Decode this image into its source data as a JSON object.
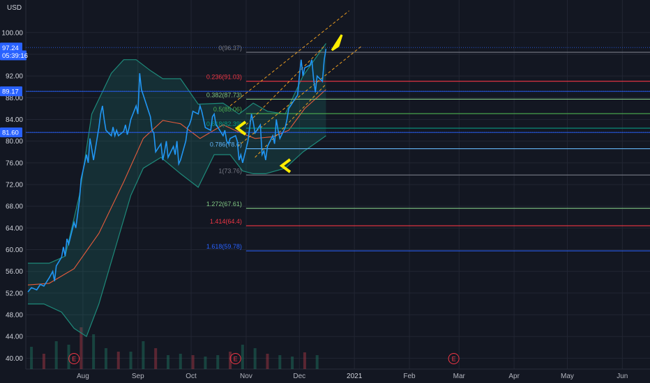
{
  "chart_data": {
    "type": "line",
    "currency": "USD",
    "ylim": [
      38.0,
      106.0
    ],
    "yticks": [
      "100.00",
      "96.00",
      "92.00",
      "88.00",
      "84.00",
      "80.00",
      "76.00",
      "72.00",
      "68.00",
      "64.00",
      "60.00",
      "56.00",
      "52.00",
      "48.00",
      "44.00",
      "40.00"
    ],
    "xticks": [
      "Aug",
      "Sep",
      "Oct",
      "Nov",
      "Dec",
      "2021",
      "Feb",
      "Mar",
      "Apr",
      "May",
      "Jun"
    ],
    "price_tags": [
      {
        "label": "97.24",
        "value": 97.24,
        "color": "#2962ff"
      },
      {
        "label": "05:39:16",
        "value": 95.8,
        "color": "#2962ff"
      },
      {
        "label": "89.17",
        "value": 89.17,
        "color": "#2962ff"
      },
      {
        "label": "81.60",
        "value": 81.6,
        "color": "#2962ff"
      }
    ],
    "horizontal_levels": [
      97.24,
      89.17,
      81.6
    ],
    "fib_levels": [
      {
        "label": "0(96.37)",
        "value": 96.37,
        "color": "#787b86"
      },
      {
        "label": "0.236(91.03)",
        "value": 91.03,
        "color": "#f23645"
      },
      {
        "label": "0.382(87.73)",
        "value": 87.73,
        "color": "#81c784"
      },
      {
        "label": "0.5(85.06)",
        "value": 85.06,
        "color": "#4caf50"
      },
      {
        "label": "0.618(82.39)",
        "value": 82.39,
        "color": "#089981"
      },
      {
        "label": "0.786(78.6)",
        "value": 78.6,
        "color": "#64b5f6"
      },
      {
        "label": "1(73.76)",
        "value": 73.76,
        "color": "#787b86"
      },
      {
        "label": "1.272(67.61)",
        "value": 67.61,
        "color": "#81c784"
      },
      {
        "label": "1.414(64.4)",
        "value": 64.4,
        "color": "#f23645"
      },
      {
        "label": "1.618(59.78)",
        "value": 59.78,
        "color": "#2962ff"
      }
    ],
    "events": [
      {
        "label": "E",
        "date": "2020-07-27"
      },
      {
        "label": "E",
        "date": "2020-10-26"
      },
      {
        "label": "E",
        "date": "2021-02-26"
      }
    ],
    "series": [
      {
        "type": "line",
        "color": "#2196f3",
        "points": [
          [
            "2020-07-01",
            52.2
          ],
          [
            "2020-07-03",
            53.0
          ],
          [
            "2020-07-06",
            52.6
          ],
          [
            "2020-07-08",
            53.6
          ],
          [
            "2020-07-10",
            53.3
          ],
          [
            "2020-07-13",
            54.8
          ],
          [
            "2020-07-15",
            56.0
          ],
          [
            "2020-07-16",
            54.2
          ],
          [
            "2020-07-17",
            57.0
          ],
          [
            "2020-07-20",
            58.6
          ],
          [
            "2020-07-21",
            60.5
          ],
          [
            "2020-07-22",
            58.8
          ],
          [
            "2020-07-23",
            62.0
          ],
          [
            "2020-07-24",
            61.0
          ],
          [
            "2020-07-27",
            65.0
          ],
          [
            "2020-07-28",
            64.0
          ],
          [
            "2020-07-29",
            66.4
          ],
          [
            "2020-07-30",
            69.0
          ],
          [
            "2020-07-31",
            73.0
          ],
          [
            "2020-08-03",
            77.5
          ],
          [
            "2020-08-04",
            76.0
          ],
          [
            "2020-08-05",
            80.5
          ],
          [
            "2020-08-06",
            78.5
          ],
          [
            "2020-08-07",
            76.5
          ],
          [
            "2020-08-10",
            82.5
          ],
          [
            "2020-08-11",
            85.0
          ],
          [
            "2020-08-12",
            86.5
          ],
          [
            "2020-08-13",
            84.0
          ],
          [
            "2020-08-14",
            82.0
          ],
          [
            "2020-08-17",
            81.0
          ],
          [
            "2020-08-18",
            82.6
          ],
          [
            "2020-08-19",
            81.0
          ],
          [
            "2020-08-20",
            82.0
          ],
          [
            "2020-08-21",
            81.0
          ],
          [
            "2020-08-24",
            81.8
          ],
          [
            "2020-08-25",
            83.0
          ],
          [
            "2020-08-26",
            81.2
          ],
          [
            "2020-08-27",
            82.4
          ],
          [
            "2020-08-28",
            84.0
          ],
          [
            "2020-08-31",
            86.5
          ],
          [
            "2020-09-01",
            85.0
          ],
          [
            "2020-09-02",
            92.5
          ],
          [
            "2020-09-03",
            89.5
          ],
          [
            "2020-09-04",
            88.5
          ],
          [
            "2020-09-08",
            84.5
          ],
          [
            "2020-09-09",
            82.0
          ],
          [
            "2020-09-10",
            81.5
          ],
          [
            "2020-09-11",
            78.0
          ],
          [
            "2020-09-14",
            79.5
          ],
          [
            "2020-09-15",
            76.5
          ],
          [
            "2020-09-16",
            78.0
          ],
          [
            "2020-09-17",
            80.0
          ],
          [
            "2020-09-18",
            77.0
          ],
          [
            "2020-09-21",
            79.0
          ],
          [
            "2020-09-22",
            77.5
          ],
          [
            "2020-09-23",
            80.0
          ],
          [
            "2020-09-24",
            75.8
          ],
          [
            "2020-09-25",
            76.5
          ],
          [
            "2020-09-28",
            80.0
          ],
          [
            "2020-09-29",
            82.5
          ],
          [
            "2020-09-30",
            83.0
          ],
          [
            "2020-10-01",
            84.0
          ],
          [
            "2020-10-02",
            85.5
          ],
          [
            "2020-10-05",
            85.0
          ],
          [
            "2020-10-06",
            86.5
          ],
          [
            "2020-10-07",
            85.5
          ],
          [
            "2020-10-08",
            84.0
          ],
          [
            "2020-10-09",
            82.5
          ],
          [
            "2020-10-12",
            82.0
          ],
          [
            "2020-10-13",
            84.5
          ],
          [
            "2020-10-14",
            85.0
          ],
          [
            "2020-10-15",
            83.0
          ],
          [
            "2020-10-16",
            82.6
          ],
          [
            "2020-10-19",
            81.0
          ],
          [
            "2020-10-20",
            82.0
          ],
          [
            "2020-10-21",
            80.0
          ],
          [
            "2020-10-22",
            79.5
          ],
          [
            "2020-10-23",
            80.5
          ],
          [
            "2020-10-26",
            81.0
          ],
          [
            "2020-10-27",
            80.0
          ],
          [
            "2020-10-28",
            76.5
          ],
          [
            "2020-10-29",
            77.5
          ],
          [
            "2020-10-30",
            76.0
          ],
          [
            "2020-11-02",
            80.0
          ],
          [
            "2020-11-03",
            82.5
          ],
          [
            "2020-11-04",
            85.0
          ],
          [
            "2020-11-05",
            83.5
          ],
          [
            "2020-11-06",
            81.5
          ],
          [
            "2020-11-09",
            83.0
          ],
          [
            "2020-11-10",
            77.5
          ],
          [
            "2020-11-11",
            78.2
          ],
          [
            "2020-11-12",
            76.5
          ],
          [
            "2020-11-13",
            79.0
          ],
          [
            "2020-11-16",
            81.0
          ],
          [
            "2020-11-17",
            79.5
          ],
          [
            "2020-11-18",
            84.0
          ],
          [
            "2020-11-19",
            82.0
          ],
          [
            "2020-11-20",
            80.5
          ],
          [
            "2020-11-23",
            82.5
          ],
          [
            "2020-11-24",
            84.0
          ],
          [
            "2020-11-25",
            86.0
          ],
          [
            "2020-11-27",
            87.0
          ],
          [
            "2020-11-30",
            88.5
          ],
          [
            "2020-12-01",
            92.0
          ],
          [
            "2020-12-02",
            95.0
          ],
          [
            "2020-12-03",
            92.0
          ],
          [
            "2020-12-04",
            93.5
          ],
          [
            "2020-12-07",
            94.0
          ],
          [
            "2020-12-08",
            95.0
          ],
          [
            "2020-12-09",
            91.5
          ],
          [
            "2020-12-10",
            89.0
          ],
          [
            "2020-12-11",
            92.0
          ],
          [
            "2020-12-14",
            91.0
          ],
          [
            "2020-12-15",
            95.0
          ],
          [
            "2020-12-16",
            97.0
          ]
        ]
      },
      {
        "type": "line",
        "color": "#e65c3c",
        "points": [
          [
            "2020-07-01",
            53.5
          ],
          [
            "2020-07-13",
            53.8
          ],
          [
            "2020-07-27",
            56.5
          ],
          [
            "2020-08-10",
            63.0
          ],
          [
            "2020-08-24",
            72.5
          ],
          [
            "2020-09-04",
            80.5
          ],
          [
            "2020-09-15",
            83.8
          ],
          [
            "2020-09-25",
            83.2
          ],
          [
            "2020-10-06",
            80.5
          ],
          [
            "2020-10-19",
            83.0
          ],
          [
            "2020-10-29",
            81.5
          ],
          [
            "2020-11-06",
            80.5
          ],
          [
            "2020-11-16",
            80.8
          ],
          [
            "2020-11-25",
            82.0
          ],
          [
            "2020-12-04",
            86.0
          ],
          [
            "2020-12-16",
            89.5
          ]
        ]
      },
      {
        "type": "area",
        "name_upper": "bb-upper",
        "upper": [
          [
            "2020-07-01",
            57.5
          ],
          [
            "2020-07-13",
            57.5
          ],
          [
            "2020-07-22",
            58.8
          ],
          [
            "2020-07-30",
            70.0
          ],
          [
            "2020-08-06",
            85.0
          ],
          [
            "2020-08-17",
            92.5
          ],
          [
            "2020-08-24",
            95.0
          ],
          [
            "2020-08-31",
            95.0
          ],
          [
            "2020-09-08",
            93.0
          ],
          [
            "2020-09-15",
            91.5
          ],
          [
            "2020-09-25",
            91.5
          ],
          [
            "2020-10-05",
            86.8
          ],
          [
            "2020-10-19",
            87.0
          ],
          [
            "2020-10-28",
            85.0
          ],
          [
            "2020-11-05",
            87.0
          ],
          [
            "2020-11-13",
            85.5
          ],
          [
            "2020-11-23",
            85.0
          ],
          [
            "2020-12-03",
            92.0
          ],
          [
            "2020-12-16",
            98.0
          ]
        ],
        "lower": [
          [
            "2020-07-01",
            50.0
          ],
          [
            "2020-07-10",
            50.0
          ],
          [
            "2020-07-20",
            48.5
          ],
          [
            "2020-07-27",
            45.5
          ],
          [
            "2020-08-03",
            44.0
          ],
          [
            "2020-08-10",
            50.0
          ],
          [
            "2020-08-19",
            60.0
          ],
          [
            "2020-08-28",
            70.0
          ],
          [
            "2020-09-04",
            75.0
          ],
          [
            "2020-09-14",
            77.0
          ],
          [
            "2020-09-25",
            74.0
          ],
          [
            "2020-10-05",
            71.5
          ],
          [
            "2020-10-14",
            77.5
          ],
          [
            "2020-10-23",
            77.5
          ],
          [
            "2020-10-30",
            74.5
          ],
          [
            "2020-11-05",
            74.0
          ],
          [
            "2020-11-12",
            74.0
          ],
          [
            "2020-11-23",
            75.0
          ],
          [
            "2020-12-03",
            78.0
          ],
          [
            "2020-12-16",
            81.0
          ]
        ]
      }
    ],
    "volume": [
      [
        "2020-07-03",
        3.2
      ],
      [
        "2020-07-10",
        2.2
      ],
      [
        "2020-07-17",
        4.0
      ],
      [
        "2020-07-24",
        3.5
      ],
      [
        "2020-07-31",
        6.0
      ],
      [
        "2020-08-07",
        5.0
      ],
      [
        "2020-08-14",
        3.0
      ],
      [
        "2020-08-21",
        2.5
      ],
      [
        "2020-08-28",
        2.5
      ],
      [
        "2020-09-04",
        4.0
      ],
      [
        "2020-09-11",
        3.0
      ],
      [
        "2020-09-18",
        2.0
      ],
      [
        "2020-09-25",
        2.2
      ],
      [
        "2020-10-02",
        2.0
      ],
      [
        "2020-10-09",
        1.8
      ],
      [
        "2020-10-16",
        2.0
      ],
      [
        "2020-10-23",
        2.5
      ],
      [
        "2020-10-30",
        3.5
      ],
      [
        "2020-11-06",
        3.0
      ],
      [
        "2020-11-13",
        2.2
      ],
      [
        "2020-11-20",
        2.0
      ],
      [
        "2020-11-27",
        1.8
      ],
      [
        "2020-12-04",
        2.4
      ],
      [
        "2020-12-11",
        2.0
      ]
    ],
    "colors": {
      "background": "#131722",
      "grid": "#222633",
      "price": "#2196f3",
      "ma": "#e65c3c",
      "band": "#1e8a7a",
      "channel": "#f0a020",
      "arrow": "#ffee00"
    }
  }
}
